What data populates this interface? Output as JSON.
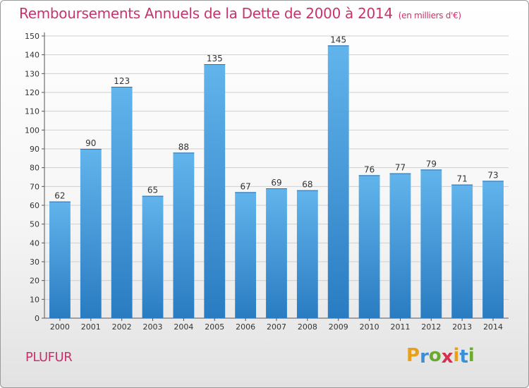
{
  "title": "Remboursements Annuels de la Dette de 2000 à 2014",
  "unit": "(en milliers d'€)",
  "commune": "PLUFUR",
  "logo": {
    "letters": [
      "P",
      "r",
      "o",
      "x",
      "i",
      "t",
      "i"
    ],
    "colors": [
      "#e8a019",
      "#3a8fd6",
      "#6aab2e",
      "#d6304f",
      "#e8a019",
      "#3a8fd6",
      "#6aab2e"
    ]
  },
  "colors": {
    "accent": "#c8336d",
    "bar_top": "#62b4ec",
    "bar_bottom": "#2a7cc2",
    "grid": "#cfcfcf"
  },
  "chart_data": {
    "type": "bar",
    "title": "Remboursements Annuels de la Dette de 2000 à 2014",
    "categories": [
      "2000",
      "2001",
      "2002",
      "2003",
      "2004",
      "2005",
      "2006",
      "2007",
      "2008",
      "2009",
      "2010",
      "2011",
      "2012",
      "2013",
      "2014"
    ],
    "values": [
      62,
      90,
      123,
      65,
      88,
      135,
      67,
      69,
      68,
      145,
      76,
      77,
      79,
      71,
      73
    ],
    "ylim": [
      0,
      150
    ],
    "yticks": [
      0,
      10,
      20,
      30,
      40,
      50,
      60,
      70,
      80,
      90,
      100,
      110,
      120,
      130,
      140,
      150
    ],
    "grid": true,
    "xlabel": "",
    "ylabel": ""
  }
}
